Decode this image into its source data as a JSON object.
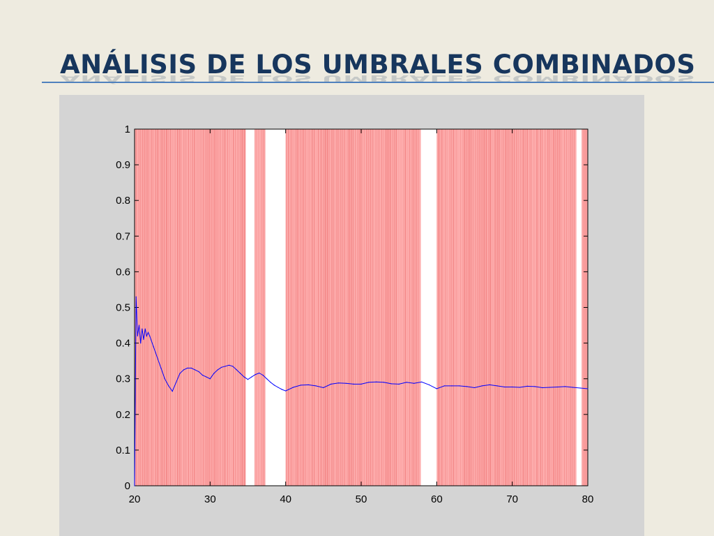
{
  "slide": {
    "title": "ANÁLISIS DE LOS UMBRALES COMBINADOS"
  },
  "colors": {
    "background": "#eeebe0",
    "title": "#17365d",
    "rule": "#4f81bd",
    "panel": "#d4d4d4",
    "shade": "#ff9a9a",
    "shade_line": "#e04040",
    "series_line": "#0000ff"
  },
  "chart_data": {
    "type": "line",
    "title": "",
    "xlabel": "",
    "ylabel": "",
    "xlim": [
      20,
      80
    ],
    "ylim": [
      0,
      1
    ],
    "x_ticks": [
      20,
      30,
      40,
      50,
      60,
      70,
      80
    ],
    "x_tick_labels": [
      "20",
      "30",
      "40",
      "50",
      "60",
      "70",
      "80"
    ],
    "y_ticks": [
      0,
      0.1,
      0.2,
      0.3,
      0.4,
      0.5,
      0.6,
      0.7,
      0.8,
      0.9,
      1
    ],
    "y_tick_labels": [
      "0",
      "0.1",
      "0.2",
      "0.3",
      "0.4",
      "0.5",
      "0.6",
      "0.7",
      "0.8",
      "0.9",
      "1"
    ],
    "grid": false,
    "legend": "none",
    "shaded_x_ranges": [
      [
        20,
        34.7
      ],
      [
        35.9,
        37.3
      ],
      [
        40.0,
        57.9
      ],
      [
        60.0,
        78.5
      ],
      [
        79.2,
        80
      ]
    ],
    "series": [
      {
        "x": [
          20,
          20.2,
          20.4,
          20.6,
          20.8,
          21.0,
          21.2,
          21.4,
          21.6,
          21.8,
          22,
          22.5,
          23,
          23.5,
          24,
          24.5,
          25,
          25.5,
          26,
          26.5,
          27,
          27.5,
          28,
          28.5,
          29,
          29.5,
          30,
          30.5,
          31,
          31.5,
          32,
          32.5,
          33,
          33.5,
          34,
          34.5,
          35,
          35.5,
          36,
          36.5,
          37,
          37.5,
          38,
          38.5,
          39,
          39.5,
          40,
          41,
          42,
          43,
          44,
          45,
          46,
          47,
          48,
          49,
          50,
          51,
          52,
          53,
          54,
          55,
          56,
          57,
          58,
          59,
          60,
          61,
          62,
          63,
          64,
          65,
          66,
          67,
          68,
          69,
          70,
          71,
          72,
          73,
          74,
          75,
          76,
          77,
          78,
          79,
          80
        ],
        "y": [
          0.0,
          0.53,
          0.42,
          0.45,
          0.4,
          0.44,
          0.41,
          0.44,
          0.42,
          0.43,
          0.42,
          0.39,
          0.36,
          0.33,
          0.3,
          0.28,
          0.265,
          0.29,
          0.315,
          0.325,
          0.33,
          0.33,
          0.325,
          0.32,
          0.31,
          0.305,
          0.3,
          0.315,
          0.325,
          0.332,
          0.335,
          0.338,
          0.335,
          0.325,
          0.315,
          0.305,
          0.298,
          0.305,
          0.312,
          0.316,
          0.31,
          0.3,
          0.29,
          0.282,
          0.276,
          0.27,
          0.266,
          0.276,
          0.282,
          0.283,
          0.28,
          0.275,
          0.285,
          0.288,
          0.287,
          0.285,
          0.285,
          0.29,
          0.291,
          0.29,
          0.286,
          0.285,
          0.29,
          0.287,
          0.291,
          0.283,
          0.272,
          0.28,
          0.28,
          0.28,
          0.278,
          0.275,
          0.28,
          0.283,
          0.28,
          0.277,
          0.277,
          0.276,
          0.279,
          0.278,
          0.275,
          0.276,
          0.277,
          0.278,
          0.276,
          0.274,
          0.272
        ]
      }
    ]
  }
}
